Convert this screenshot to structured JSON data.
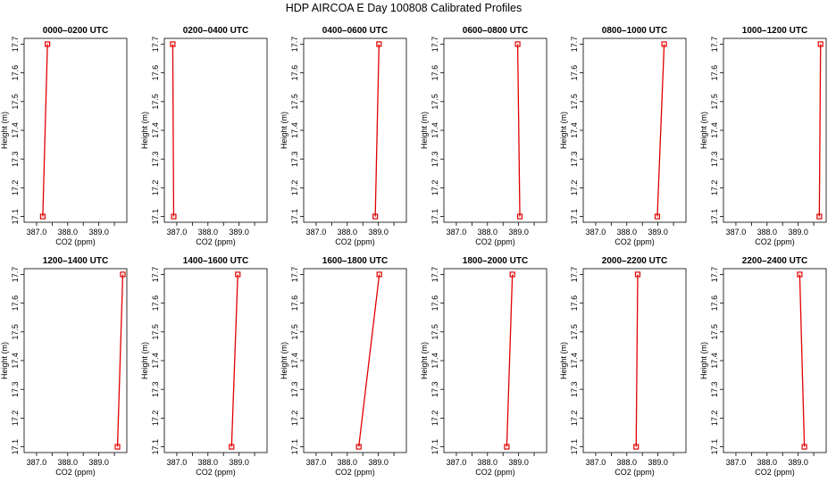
{
  "title": "HDP AIRCOA E  Day 100808  Calibrated Profiles",
  "colors": {
    "line": "#e00000",
    "points": "#e00000",
    "axes": "#000000"
  },
  "chart_data": {
    "type": "line",
    "grid": false,
    "xlabel": "CO2 (ppm)",
    "ylabel": "Height (m)",
    "xlim": [
      386.6,
      389.9
    ],
    "ylim": [
      17.08,
      17.72
    ],
    "xticks": [
      387.0,
      387.5,
      388.0,
      388.5,
      389.0,
      389.5
    ],
    "xtick_labels": [
      "387.0",
      "",
      "388.0",
      "",
      "389.0",
      ""
    ],
    "yticks": [
      17.1,
      17.2,
      17.3,
      17.4,
      17.5,
      17.6,
      17.7
    ],
    "ytick_labels": [
      "17.1",
      "17.2",
      "17.3",
      "17.4",
      "17.5",
      "17.6",
      "17.7"
    ],
    "panels": [
      {
        "title": "0000–0200 UTC",
        "points": [
          {
            "x": 387.2,
            "y": 17.1
          },
          {
            "x": 387.35,
            "y": 17.7
          }
        ]
      },
      {
        "title": "0200–0400 UTC",
        "points": [
          {
            "x": 386.9,
            "y": 17.1
          },
          {
            "x": 386.87,
            "y": 17.7
          }
        ]
      },
      {
        "title": "0400–0600 UTC",
        "points": [
          {
            "x": 388.9,
            "y": 17.1
          },
          {
            "x": 389.02,
            "y": 17.7
          }
        ]
      },
      {
        "title": "0600–0800 UTC",
        "points": [
          {
            "x": 389.04,
            "y": 17.1
          },
          {
            "x": 388.97,
            "y": 17.7
          }
        ]
      },
      {
        "title": "0800–1000 UTC",
        "points": [
          {
            "x": 388.98,
            "y": 17.1
          },
          {
            "x": 389.2,
            "y": 17.7
          }
        ]
      },
      {
        "title": "1000–1200 UTC",
        "points": [
          {
            "x": 389.68,
            "y": 17.1
          },
          {
            "x": 389.72,
            "y": 17.7
          }
        ]
      },
      {
        "title": "1200–1400 UTC",
        "points": [
          {
            "x": 389.6,
            "y": 17.1
          },
          {
            "x": 389.77,
            "y": 17.7
          }
        ]
      },
      {
        "title": "1400–1600 UTC",
        "points": [
          {
            "x": 388.76,
            "y": 17.1
          },
          {
            "x": 388.96,
            "y": 17.7
          }
        ]
      },
      {
        "title": "1600–1800 UTC",
        "points": [
          {
            "x": 388.37,
            "y": 17.1
          },
          {
            "x": 389.03,
            "y": 17.7
          }
        ]
      },
      {
        "title": "1800–2000 UTC",
        "points": [
          {
            "x": 388.62,
            "y": 17.1
          },
          {
            "x": 388.8,
            "y": 17.7
          }
        ]
      },
      {
        "title": "2000–2200 UTC",
        "points": [
          {
            "x": 388.3,
            "y": 17.1
          },
          {
            "x": 388.35,
            "y": 17.7
          }
        ]
      },
      {
        "title": "2200–2400 UTC",
        "points": [
          {
            "x": 389.2,
            "y": 17.1
          },
          {
            "x": 389.05,
            "y": 17.7
          }
        ]
      }
    ]
  }
}
